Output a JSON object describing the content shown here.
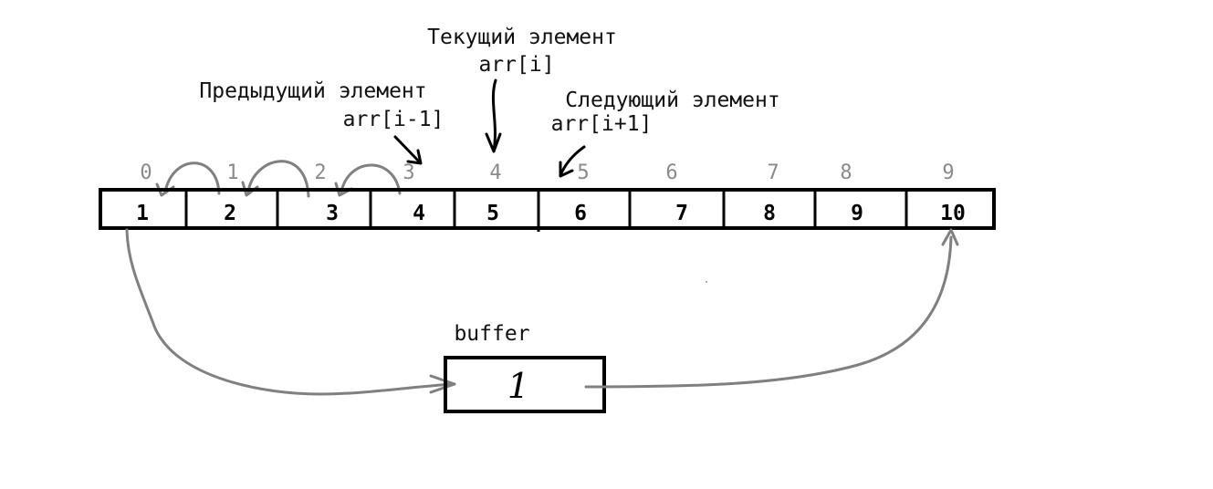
{
  "array": {
    "indices": [
      "0",
      "1",
      "2",
      "3",
      "4",
      "5",
      "6",
      "7",
      "8",
      "9"
    ],
    "values": [
      "1",
      "2",
      "3",
      "4",
      "5",
      "6",
      "7",
      "8",
      "9",
      "10"
    ]
  },
  "labels": {
    "current": {
      "title": "Текущий элемент",
      "code": "arr[i]"
    },
    "previous": {
      "title": "Предыдущий элемент",
      "code": "arr[i-1]"
    },
    "next": {
      "title": "Следующий элемент",
      "code": "arr[i+1]"
    }
  },
  "buffer": {
    "label": "buffer",
    "value": "1"
  },
  "colors": {
    "outline": "#000000",
    "arrow_grey": "#808080",
    "index_grey": "#8a8a8a",
    "background": "#ffffff"
  }
}
